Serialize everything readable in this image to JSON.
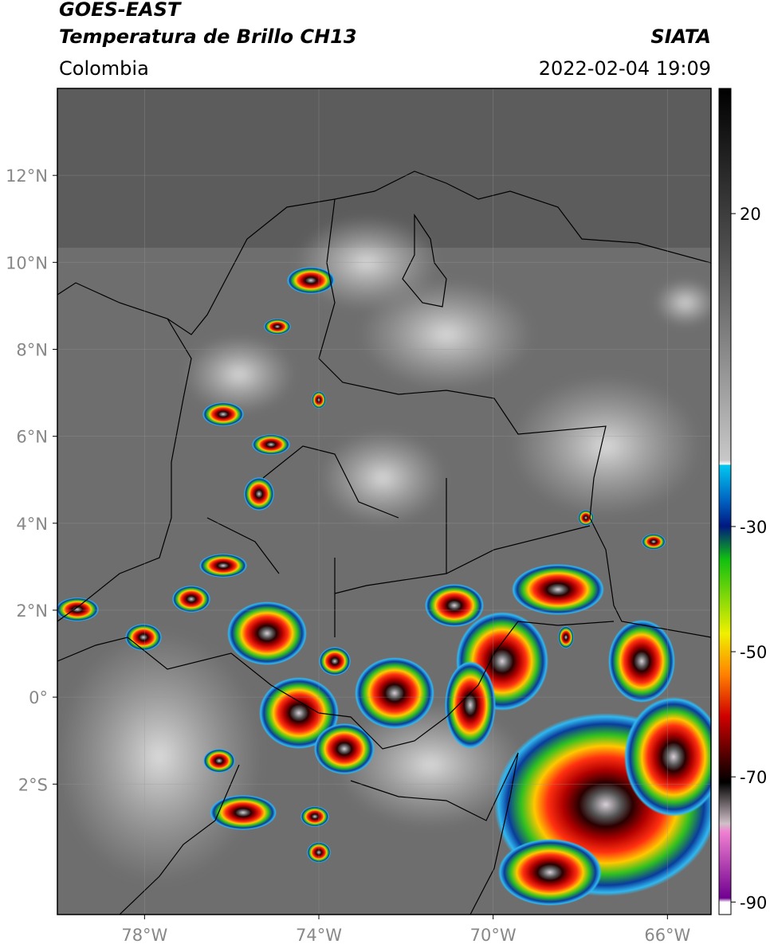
{
  "header": {
    "satellite": "GOES-EAST",
    "product": "Temperatura de Brillo CH13",
    "region": "Colombia",
    "source": "SIATA",
    "datetime": "2022-02-04 19:09"
  },
  "map": {
    "xlim": [
      -80,
      -65
    ],
    "ylim": [
      -5,
      14
    ],
    "xticks": [
      {
        "value": -78,
        "label": "78°W"
      },
      {
        "value": -74,
        "label": "74°W"
      },
      {
        "value": -70,
        "label": "70°W"
      },
      {
        "value": -66,
        "label": "66°W"
      }
    ],
    "yticks": [
      {
        "value": 12,
        "label": "12°N"
      },
      {
        "value": 10,
        "label": "10°N"
      },
      {
        "value": 8,
        "label": "8°N"
      },
      {
        "value": 6,
        "label": "6°N"
      },
      {
        "value": 4,
        "label": "4°N"
      },
      {
        "value": 2,
        "label": "2°N"
      },
      {
        "value": 0,
        "label": "0°"
      },
      {
        "value": -2,
        "label": "2°S"
      }
    ]
  },
  "colorbar": {
    "lim": [
      -92,
      40
    ],
    "ticks": [
      20,
      -30,
      -50,
      -70,
      -90
    ]
  }
}
